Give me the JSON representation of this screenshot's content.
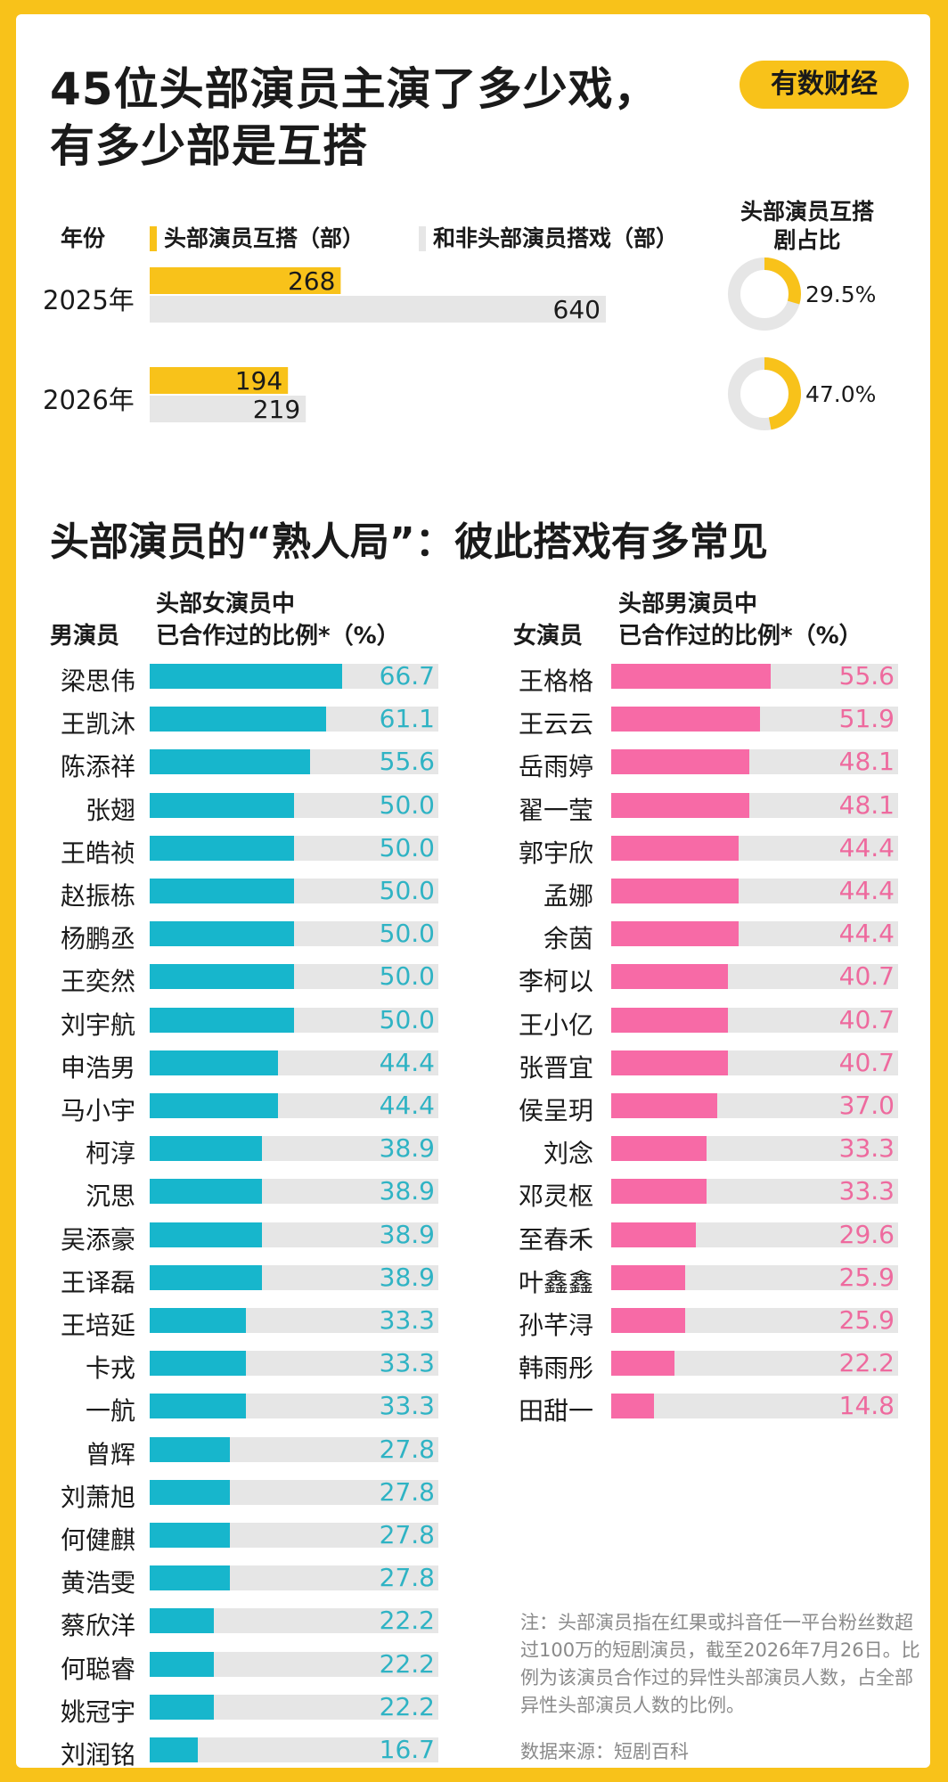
{
  "header": {
    "title_line1": "45位头部演员主演了多少戏，",
    "title_line2": "有多少部是互搭",
    "brand": "有数财经"
  },
  "colors": {
    "yellow": "#f8c21a",
    "grey": "#e6e6e6",
    "cyan": "#17b6cc",
    "cyan_text": "#2fb3c4",
    "pink": "#f76aa6",
    "pink_text": "#ee6a9e"
  },
  "chart_data": [
    {
      "type": "bar",
      "orientation": "horizontal",
      "legend_year": "年份",
      "categories": [
        "2025年",
        "2026年"
      ],
      "series": [
        {
          "name": "头部演员互搭（部）",
          "values": [
            268,
            194
          ],
          "color": "#f8c21a"
        },
        {
          "name": "和非头部演员搭戏（部）",
          "values": [
            640,
            219
          ],
          "color": "#e6e6e6"
        }
      ],
      "value_labels": [
        [
          "268",
          "640"
        ],
        [
          "194",
          "219"
        ]
      ]
    },
    {
      "type": "pie",
      "title": "头部演员互搭剧占比",
      "categories": [
        "2025年",
        "2026年"
      ],
      "values": [
        29.5,
        47.0
      ],
      "labels": [
        "29.5%",
        "47.0%"
      ]
    },
    {
      "type": "bar",
      "orientation": "horizontal",
      "title": "头部演员的“熟人局”：彼此搭戏有多常见",
      "group_label": "男演员",
      "metric_label_line1": "头部女演员中",
      "metric_label_line2": "已合作过的比例*（%）",
      "categories": [
        "梁思伟",
        "王凯沐",
        "陈添祥",
        "张翅",
        "王皓祯",
        "赵振栋",
        "杨鹏丞",
        "王奕然",
        "刘宇航",
        "申浩男",
        "马小宇",
        "柯淳",
        "沉思",
        "吴添豪",
        "王译磊",
        "王培延",
        "卡戎",
        "一航",
        "曾辉",
        "刘萧旭",
        "何健麒",
        "黄浩雯",
        "蔡欣洋",
        "何聪睿",
        "姚冠宇",
        "刘润铭"
      ],
      "values": [
        66.7,
        61.1,
        55.6,
        50.0,
        50.0,
        50.0,
        50.0,
        50.0,
        50.0,
        44.4,
        44.4,
        38.9,
        38.9,
        38.9,
        38.9,
        33.3,
        33.3,
        33.3,
        27.8,
        27.8,
        27.8,
        27.8,
        22.2,
        22.2,
        22.2,
        16.7
      ],
      "value_labels": [
        "66.7",
        "61.1",
        "55.6",
        "50.0",
        "50.0",
        "50.0",
        "50.0",
        "50.0",
        "50.0",
        "44.4",
        "44.4",
        "38.9",
        "38.9",
        "38.9",
        "38.9",
        "33.3",
        "33.3",
        "33.3",
        "27.8",
        "27.8",
        "27.8",
        "27.8",
        "22.2",
        "22.2",
        "22.2",
        "16.7"
      ],
      "xlim": [
        0,
        100
      ]
    },
    {
      "type": "bar",
      "orientation": "horizontal",
      "group_label": "女演员",
      "metric_label_line1": "头部男演员中",
      "metric_label_line2": "已合作过的比例*（%）",
      "categories": [
        "王格格",
        "王云云",
        "岳雨婷",
        "翟一莹",
        "郭宇欣",
        "孟娜",
        "余茵",
        "李柯以",
        "王小亿",
        "张晋宜",
        "侯呈玥",
        "刘念",
        "邓灵枢",
        "至春禾",
        "叶鑫鑫",
        "孙芊浔",
        "韩雨彤",
        "田甜一"
      ],
      "values": [
        55.6,
        51.9,
        48.1,
        48.1,
        44.4,
        44.4,
        44.4,
        40.7,
        40.7,
        40.7,
        37.0,
        33.3,
        33.3,
        29.6,
        25.9,
        25.9,
        22.2,
        14.8
      ],
      "value_labels": [
        "55.6",
        "51.9",
        "48.1",
        "48.1",
        "44.4",
        "44.4",
        "44.4",
        "40.7",
        "40.7",
        "40.7",
        "37.0",
        "33.3",
        "33.3",
        "29.6",
        "25.9",
        "25.9",
        "22.2",
        "14.8"
      ],
      "xlim": [
        0,
        100
      ]
    }
  ],
  "footer": {
    "note": "注：头部演员指在红果或抖音任一平台粉丝数超过100万的短剧演员，截至2026年7月26日。比例为该演员合作过的异性头部演员人数，占全部异性头部演员人数的比例。",
    "source": "数据来源：短剧百科"
  }
}
